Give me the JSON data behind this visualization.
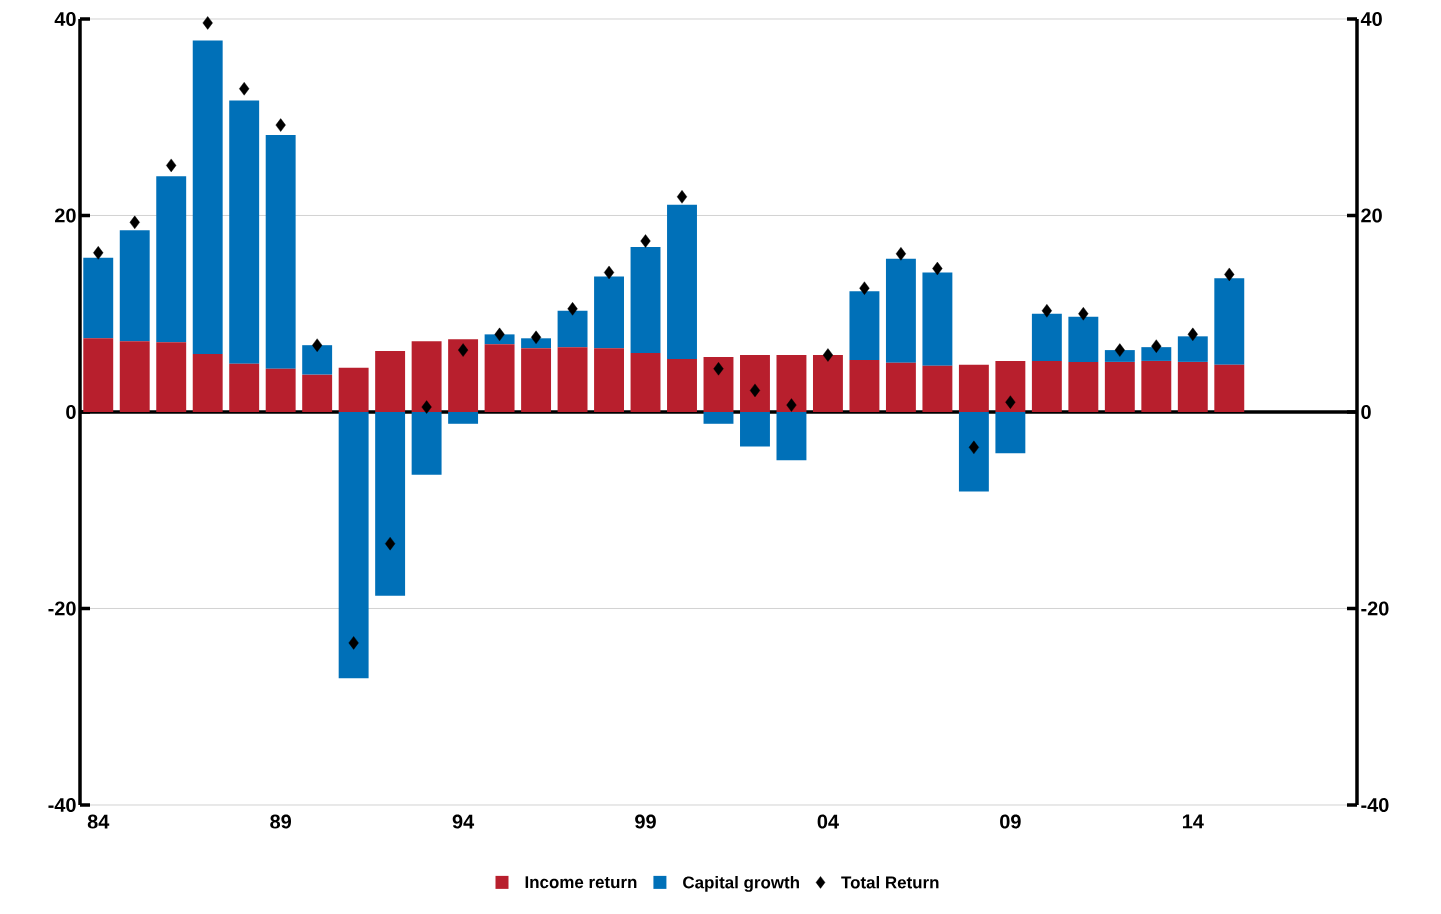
{
  "chart_data": {
    "type": "bar",
    "stacked": true,
    "x": [
      1984,
      1985,
      1986,
      1987,
      1988,
      1989,
      1990,
      1991,
      1992,
      1993,
      1994,
      1995,
      1996,
      1997,
      1998,
      1999,
      2000,
      2001,
      2002,
      2003,
      2004,
      2005,
      2006,
      2007,
      2008,
      2009,
      2010,
      2011,
      2012,
      2013,
      2014,
      2015
    ],
    "series": [
      {
        "name": "Income return",
        "color": "#b81f2d",
        "values": [
          7.5,
          7.2,
          7.1,
          5.9,
          4.9,
          4.4,
          3.8,
          4.5,
          6.2,
          7.2,
          7.4,
          6.9,
          6.5,
          6.6,
          6.5,
          6.0,
          5.4,
          5.6,
          5.8,
          5.8,
          5.8,
          5.3,
          5.0,
          4.7,
          4.8,
          5.2,
          5.2,
          5.1,
          5.1,
          5.2,
          5.1,
          4.8
        ]
      },
      {
        "name": "Capital growth",
        "color": "#0070b8",
        "values": [
          8.2,
          11.3,
          16.9,
          31.9,
          26.8,
          23.8,
          3.0,
          -27.1,
          -18.7,
          -6.4,
          -1.2,
          1.0,
          1.0,
          3.7,
          7.3,
          10.8,
          15.7,
          -1.2,
          -3.5,
          -4.9,
          0,
          7.0,
          10.6,
          9.5,
          -8.1,
          -4.2,
          4.8,
          4.6,
          1.2,
          1.4,
          2.6,
          8.8
        ]
      },
      {
        "name": "Total Return",
        "type": "scatter",
        "marker": "diamond",
        "color": "#000000",
        "values": [
          16.2,
          19.3,
          25.1,
          39.6,
          32.9,
          29.2,
          6.8,
          -23.5,
          -13.4,
          0.5,
          6.3,
          7.9,
          7.6,
          10.5,
          14.2,
          17.4,
          21.9,
          4.4,
          2.2,
          0.7,
          5.8,
          12.6,
          16.1,
          14.6,
          -3.6,
          1.0,
          10.3,
          10.0,
          6.3,
          6.7,
          7.9,
          14.0
        ]
      }
    ],
    "xlim": [
      1983.5,
      2018.5
    ],
    "xticks": [
      {
        "value": 1984,
        "label": "84"
      },
      {
        "value": 1989,
        "label": "89"
      },
      {
        "value": 1994,
        "label": "94"
      },
      {
        "value": 1999,
        "label": "99"
      },
      {
        "value": 2004,
        "label": "04"
      },
      {
        "value": 2009,
        "label": "09"
      },
      {
        "value": 2014,
        "label": "14"
      }
    ],
    "ylim": [
      -40,
      40
    ],
    "yticks": [
      -40,
      -20,
      0,
      20,
      40
    ],
    "y2lim": [
      -40,
      40
    ],
    "y2ticks": [
      -40,
      -20,
      0,
      20,
      40
    ],
    "grid": true,
    "legend": "bottom"
  }
}
